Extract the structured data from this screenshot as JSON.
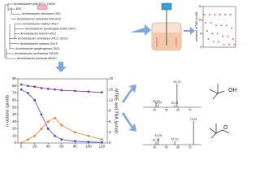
{
  "tree": {
    "labels": [
      "Acinetobacter pittii ATCC 19004",
      "BS1",
      "Acinetobacter oleivorans DR1",
      "Acinetobacter antiviralis KNF2022",
      "Acinetobacter indicus 4N13",
      "Acinetobacter tjernbergiae DSM 14971",
      "Acinetobacter towneri 4D12",
      "Acinetobacter venetianus ATCC 31012",
      "Acinetobacter marinus SW-5",
      "Acinetobacter qingfengensis 2B21",
      "Acinetobacter seohaensis SW100",
      "Acinetobacter johnsonii AB110"
    ]
  },
  "chart_data": [
    {
      "type": "line",
      "ylabel": "n-octane (μmol)",
      "y2label": "MTBE and TBA (μmol)",
      "x": [
        0,
        10,
        20,
        30,
        40,
        50,
        60,
        80,
        100,
        120
      ],
      "xlim": [
        -5,
        128
      ],
      "xticks": [
        0,
        20,
        40,
        60,
        80,
        100,
        120
      ],
      "ylim": [
        0,
        90
      ],
      "yticks": [
        0,
        10,
        20,
        30,
        40,
        50,
        60,
        70,
        80,
        90
      ],
      "y2lim": [
        0,
        18
      ],
      "y2ticks": [
        0,
        3,
        6,
        9,
        12,
        15,
        18
      ],
      "series": [
        {
          "color": "#7b3fa0",
          "values": [
            82,
            80,
            79,
            77,
            76,
            75,
            74,
            73,
            72,
            71
          ]
        },
        {
          "color": "#3a4fd0",
          "axis": "y2",
          "values": [
            15,
            14,
            12,
            8,
            4,
            2,
            1,
            0.5,
            0.3,
            0.2
          ]
        },
        {
          "color": "#f08030",
          "axis": "y2",
          "values": [
            0,
            1,
            2,
            4,
            6,
            7,
            5,
            3,
            2,
            1
          ]
        }
      ]
    },
    {
      "type": "scatter",
      "ylabel": "residual MTBE (mM)",
      "color": "#e0608a",
      "x": [
        0,
        2,
        4,
        6,
        8,
        10,
        12,
        14,
        16,
        18,
        20,
        22,
        24,
        26,
        28,
        30,
        32,
        34,
        36,
        38,
        40,
        42,
        44,
        46
      ],
      "values": [
        12,
        9,
        6,
        3,
        12,
        9,
        5,
        2,
        12,
        8,
        5,
        2,
        12,
        8,
        4,
        1,
        12,
        8,
        4,
        1,
        12,
        7,
        3,
        1
      ],
      "xlim": [
        -2,
        48
      ],
      "ylim": [
        0,
        15
      ],
      "yticks": [
        0,
        5,
        10,
        15
      ]
    },
    {
      "type": "spectrum",
      "x": [
        41.13,
        43.09,
        57.07,
        59.1
      ],
      "x_labels": [
        "41.13",
        "43.09",
        "57.07",
        "59.10"
      ],
      "values": [
        18,
        12,
        10,
        100
      ],
      "xlim": [
        30,
        80
      ],
      "xticks": [
        40,
        50,
        60,
        70
      ],
      "ylim": [
        0,
        110
      ]
    },
    {
      "type": "spectrum",
      "x": [
        41.1,
        43.09,
        57.1,
        73.15
      ],
      "x_labels": [
        "41.10",
        "43.09",
        "57.10",
        "73.15"
      ],
      "values": [
        12,
        30,
        15,
        100
      ],
      "xlim": [
        30,
        80
      ],
      "xticks": [
        40,
        50,
        60,
        70
      ],
      "ylim": [
        0,
        110
      ]
    }
  ],
  "molecules": [
    "OH",
    "O"
  ]
}
